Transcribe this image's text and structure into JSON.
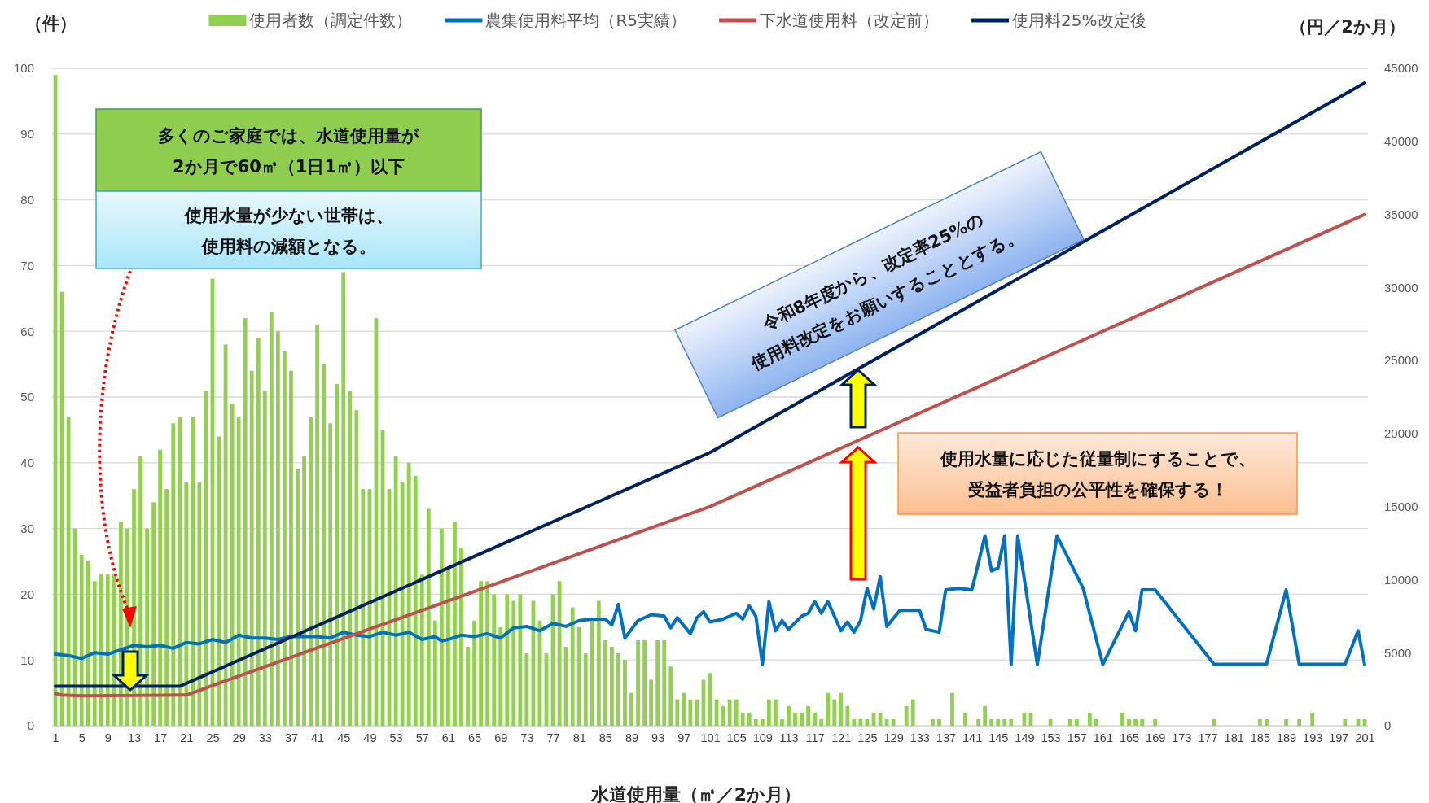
{
  "chart_data": {
    "type": "bar",
    "xlabel": "水道使用量（㎥／2か月）",
    "ylabel": "（件）",
    "y2label": "（円／2か月）",
    "x": [
      1,
      2,
      3,
      4,
      5,
      6,
      7,
      8,
      9,
      10,
      11,
      12,
      13,
      14,
      15,
      16,
      17,
      18,
      19,
      20,
      21,
      22,
      23,
      24,
      25,
      26,
      27,
      28,
      29,
      30,
      31,
      32,
      33,
      34,
      35,
      36,
      37,
      38,
      39,
      40,
      41,
      42,
      43,
      44,
      45,
      46,
      47,
      48,
      49,
      50,
      51,
      52,
      53,
      54,
      55,
      56,
      57,
      58,
      59,
      60,
      61,
      62,
      63,
      64,
      65,
      66,
      67,
      68,
      69,
      70,
      71,
      72,
      73,
      74,
      75,
      76,
      77,
      78,
      79,
      80,
      81,
      82,
      83,
      84,
      85,
      86,
      87,
      88,
      89,
      90,
      91,
      92,
      93,
      94,
      95,
      96,
      97,
      98,
      99,
      100,
      101,
      102,
      103,
      104,
      105,
      106,
      107,
      108,
      109,
      110,
      111,
      112,
      113,
      114,
      115,
      116,
      117,
      118,
      119,
      120,
      121,
      122,
      123,
      124,
      125,
      126,
      127,
      128,
      129,
      130,
      131,
      132,
      133,
      134,
      135,
      136,
      137,
      138,
      139,
      140,
      141,
      142,
      143,
      144,
      145,
      146,
      147,
      148,
      149,
      150,
      151,
      152,
      153,
      154,
      155,
      156,
      157,
      158,
      159,
      160,
      161,
      162,
      163,
      164,
      165,
      166,
      167,
      168,
      169,
      170,
      171,
      172,
      173,
      174,
      175,
      176,
      177,
      178,
      179,
      180,
      181,
      182,
      183,
      184,
      185,
      186,
      187,
      188,
      189,
      190,
      191,
      192,
      193,
      194,
      195,
      196,
      197,
      198,
      199,
      200,
      201
    ],
    "xlim": [
      0.5,
      201.5
    ],
    "xticks": [
      1,
      5,
      9,
      13,
      17,
      21,
      25,
      29,
      33,
      37,
      41,
      45,
      49,
      53,
      57,
      61,
      65,
      69,
      73,
      77,
      81,
      85,
      89,
      93,
      97,
      101,
      105,
      109,
      113,
      117,
      121,
      125,
      129,
      133,
      137,
      141,
      145,
      149,
      153,
      157,
      161,
      165,
      169,
      173,
      177,
      181,
      185,
      189,
      193,
      197,
      201
    ],
    "ylim": [
      0,
      100
    ],
    "yticks": [
      0,
      10,
      20,
      30,
      40,
      50,
      60,
      70,
      80,
      90,
      100
    ],
    "y2lim": [
      0,
      45000
    ],
    "y2ticks": [
      0,
      5000,
      10000,
      15000,
      20000,
      25000,
      30000,
      35000,
      40000,
      45000
    ],
    "grid": "y",
    "legend": "top",
    "marker": "none",
    "line_style": "solid",
    "series": [
      {
        "name": "使用者数（調定件数）",
        "color": "#92d050",
        "values": [
          99,
          66,
          47,
          30,
          26,
          25,
          22,
          23,
          23,
          23,
          31,
          30,
          36,
          41,
          30,
          34,
          42,
          36,
          46,
          47,
          37,
          47,
          37,
          51,
          68,
          44,
          58,
          49,
          47,
          62,
          54,
          59,
          51,
          63,
          60,
          57,
          54,
          39,
          41,
          47,
          61,
          55,
          46,
          52,
          69,
          51,
          48,
          36,
          36,
          62,
          45,
          36,
          41,
          37,
          40,
          38,
          23,
          33,
          16,
          30,
          24,
          31,
          27,
          12,
          16,
          22,
          22,
          20,
          15,
          20,
          19,
          20,
          11,
          19,
          16,
          11,
          20,
          22,
          12,
          18,
          15,
          11,
          16,
          19,
          13,
          12,
          11,
          10,
          5,
          13,
          13,
          7,
          13,
          13,
          9,
          4,
          5,
          4,
          4,
          7,
          8,
          4,
          3,
          4,
          4,
          2,
          2,
          1,
          1,
          4,
          4,
          1,
          3,
          2,
          2,
          3,
          2,
          1,
          5,
          4,
          5,
          3,
          1,
          1,
          1,
          2,
          2,
          1,
          1,
          0,
          3,
          4,
          0,
          0,
          1,
          1,
          0,
          5,
          0,
          2,
          0,
          1,
          3,
          1,
          1,
          1,
          1,
          0,
          2,
          2,
          0,
          0,
          1,
          0,
          0,
          1,
          1,
          0,
          2,
          1,
          0,
          0,
          0,
          2,
          1,
          1,
          1,
          0,
          1,
          0,
          0,
          0,
          0,
          0,
          0,
          0,
          0,
          1,
          0,
          0,
          0,
          0,
          0,
          0,
          1,
          1,
          0,
          0,
          1,
          0,
          1,
          0,
          2,
          0,
          0,
          0,
          0,
          1,
          0,
          1,
          1
        ]
      },
      {
        "name": "農集使用料平均（R5実績）",
        "type": "line",
        "axis": "y2",
        "color": "#0070c0",
        "x": [
          1,
          3,
          5,
          7,
          9,
          11,
          13,
          15,
          17,
          19,
          21,
          23,
          25,
          27,
          29,
          31,
          33,
          35,
          37,
          39,
          41,
          43,
          45,
          47,
          49,
          51,
          53,
          55,
          57,
          59,
          60,
          61,
          63,
          65,
          67,
          69,
          71,
          73,
          75,
          77,
          79,
          81,
          83,
          85,
          86,
          87,
          88,
          90,
          92,
          94,
          95,
          96,
          98,
          99,
          100,
          101,
          103,
          105,
          106,
          107,
          108,
          109,
          110,
          111,
          112,
          113,
          115,
          116,
          117,
          118,
          119,
          121,
          122,
          123,
          124,
          125,
          126,
          127,
          128,
          130,
          133,
          134,
          136,
          137,
          139,
          141,
          143,
          144,
          145,
          146,
          147,
          148,
          151,
          154,
          158,
          161,
          165,
          166,
          167,
          169,
          178,
          186,
          189,
          191,
          198,
          200,
          201
        ],
        "values": [
          4900,
          4800,
          4600,
          5000,
          4900,
          5200,
          5500,
          5400,
          5500,
          5300,
          5700,
          5600,
          5900,
          5700,
          6200,
          6000,
          6000,
          5900,
          6100,
          6100,
          6100,
          6000,
          6400,
          6200,
          6100,
          6400,
          6200,
          6400,
          5900,
          6100,
          5800,
          5900,
          6200,
          6100,
          6300,
          6000,
          6700,
          6800,
          6500,
          7000,
          6800,
          7200,
          7300,
          7300,
          6900,
          8300,
          6000,
          7200,
          7600,
          7500,
          6700,
          7400,
          6300,
          7400,
          7800,
          7100,
          7300,
          7700,
          7300,
          8200,
          7500,
          4200,
          8500,
          6500,
          7200,
          6600,
          7500,
          7700,
          8500,
          7700,
          8500,
          6500,
          7100,
          6400,
          7200,
          9400,
          8000,
          10200,
          6800,
          7900,
          7900,
          6600,
          6400,
          9300,
          9400,
          9300,
          13000,
          10600,
          10800,
          13000,
          4200,
          13000,
          4200,
          13000,
          9400,
          4200,
          7800,
          6500,
          9300,
          9300,
          4200,
          4200,
          9300,
          4200,
          4200,
          6500,
          4200
        ]
      },
      {
        "name": "下水道使用料（改定前）",
        "type": "line",
        "axis": "y2",
        "color": "#c0504d",
        "x": [
          1,
          2,
          5,
          21,
          101,
          201
        ],
        "values": [
          2200,
          2100,
          2050,
          2100,
          15000,
          35000
        ]
      },
      {
        "name": "使用料25%改定後",
        "type": "line",
        "axis": "y2",
        "color": "#002060",
        "x": [
          1,
          20,
          101,
          201
        ],
        "values": [
          2700,
          2700,
          18700,
          44000
        ]
      }
    ],
    "annotations": [
      "多くのご家庭では、水道使用量が2か月で60㎥（1日1㎥）以下",
      "使用水量が少ない世帯は、使用料の減額となる。",
      "令和8年度から、改定率25%の使用料改定をお願いすることとする。",
      "使用水量に応じた従量制にすることで、受益者負担の公平性を確保する！"
    ]
  }
}
